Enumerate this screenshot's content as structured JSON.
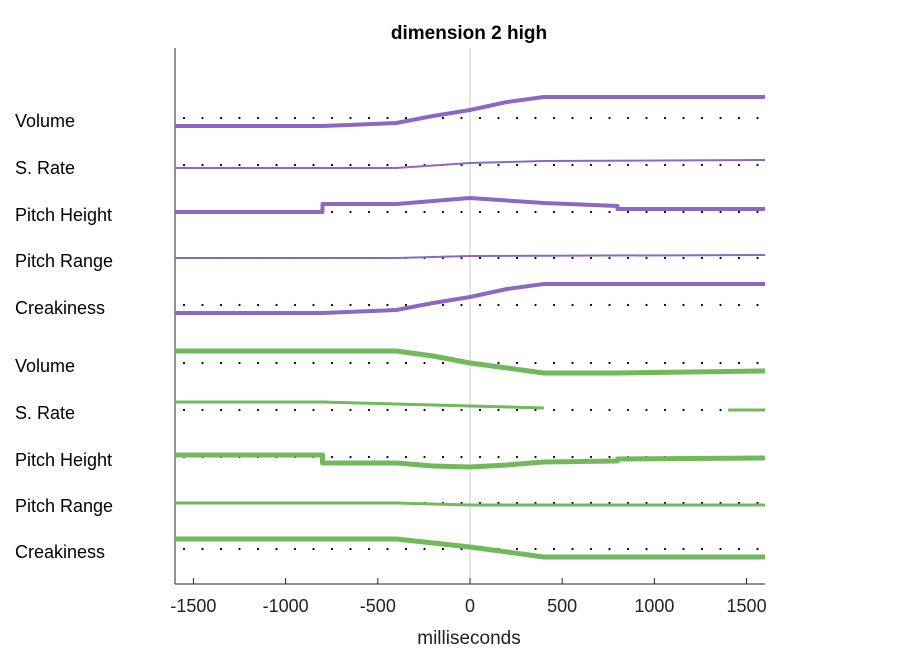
{
  "chart_data": {
    "type": "line",
    "title": "dimension  2 high",
    "xlabel": "milliseconds",
    "xlim": [
      -1600,
      1600
    ],
    "xticks": [
      -1500,
      -1000,
      -500,
      0,
      500,
      1000,
      1500
    ],
    "xtick_labels": [
      "-1500",
      "-1000",
      "-500",
      "0",
      "500",
      "1000",
      "1500"
    ],
    "grid": false,
    "reference_line_x": 0,
    "colors": {
      "purple": "#8B68C2",
      "green": "#72B95B",
      "dots": "#000000",
      "refline": "#c8c8c8"
    },
    "rows": [
      {
        "label": "Volume",
        "group": "purple",
        "width": 4,
        "points": [
          [
            -1600,
            0.8
          ],
          [
            -800,
            0.8
          ],
          [
            -400,
            0.5
          ],
          [
            -200,
            -0.2
          ],
          [
            0,
            -0.8
          ],
          [
            200,
            -1.6
          ],
          [
            400,
            -2.1
          ],
          [
            800,
            -2.1
          ],
          [
            1600,
            -2.1
          ]
        ]
      },
      {
        "label": "S. Rate",
        "group": "purple",
        "width": 2,
        "points": [
          [
            -1600,
            0.3
          ],
          [
            -400,
            0.3
          ],
          [
            0,
            -0.2
          ],
          [
            400,
            -0.4
          ],
          [
            1600,
            -0.5
          ]
        ]
      },
      {
        "label": "Pitch Height",
        "group": "purple",
        "width": 4,
        "points": [
          [
            -1600,
            0
          ],
          [
            -800,
            0
          ],
          [
            -800,
            -0.8
          ],
          [
            -400,
            -0.8
          ],
          [
            0,
            -1.4
          ],
          [
            400,
            -0.9
          ],
          [
            800,
            -0.6
          ],
          [
            800,
            -0.3
          ],
          [
            1600,
            -0.3
          ]
        ]
      },
      {
        "label": "Pitch Range",
        "group": "purple",
        "width": 2,
        "points": [
          [
            -1600,
            0
          ],
          [
            -400,
            0
          ],
          [
            0,
            -0.2
          ],
          [
            1600,
            -0.3
          ]
        ]
      },
      {
        "label": "Creakiness",
        "group": "purple",
        "width": 4,
        "points": [
          [
            -1600,
            0.8
          ],
          [
            -800,
            0.8
          ],
          [
            -400,
            0.5
          ],
          [
            -200,
            -0.2
          ],
          [
            0,
            -0.8
          ],
          [
            200,
            -1.6
          ],
          [
            400,
            -2.1
          ],
          [
            1600,
            -2.1
          ]
        ]
      },
      {
        "label": "Volume",
        "group": "green",
        "width": 5,
        "points": [
          [
            -1600,
            -1.2
          ],
          [
            -400,
            -1.2
          ],
          [
            -200,
            -0.7
          ],
          [
            0,
            0
          ],
          [
            200,
            0.5
          ],
          [
            400,
            1.0
          ],
          [
            800,
            1.0
          ],
          [
            1600,
            0.8
          ]
        ]
      },
      {
        "label": "S. Rate",
        "group": "green",
        "width": 3,
        "points": [
          [
            -1600,
            -0.8
          ],
          [
            -800,
            -0.8
          ],
          [
            -400,
            -0.6
          ],
          [
            0,
            -0.4
          ],
          [
            400,
            -0.2
          ]
        ]
      },
      {
        "label": "S. Rate (end)",
        "group": "green",
        "width": 3,
        "points": [
          [
            1400,
            0
          ],
          [
            1600,
            0
          ]
        ]
      },
      {
        "label": "Pitch Height",
        "group": "green",
        "width": 5,
        "points": [
          [
            -1600,
            -0.2
          ],
          [
            -800,
            -0.2
          ],
          [
            -800,
            0.6
          ],
          [
            -400,
            0.6
          ],
          [
            -200,
            0.9
          ],
          [
            0,
            1.0
          ],
          [
            200,
            0.8
          ],
          [
            400,
            0.5
          ],
          [
            800,
            0.4
          ],
          [
            800,
            0.2
          ],
          [
            1600,
            0.1
          ]
        ]
      },
      {
        "label": "Pitch Range",
        "group": "green",
        "width": 3,
        "points": [
          [
            -1600,
            0
          ],
          [
            -400,
            0
          ],
          [
            0,
            0.2
          ],
          [
            1600,
            0.2
          ]
        ]
      },
      {
        "label": "Creakiness",
        "group": "green",
        "width": 5,
        "points": [
          [
            -1600,
            -1.0
          ],
          [
            -400,
            -1.0
          ],
          [
            0,
            -0.2
          ],
          [
            400,
            0.8
          ],
          [
            1600,
            0.8
          ]
        ]
      }
    ],
    "row_labels": [
      "Volume",
      "S. Rate",
      "Pitch Height",
      "Pitch Range",
      "Creakiness",
      "Volume",
      "S. Rate",
      "Pitch Height",
      "Pitch Range",
      "Creakiness"
    ]
  }
}
